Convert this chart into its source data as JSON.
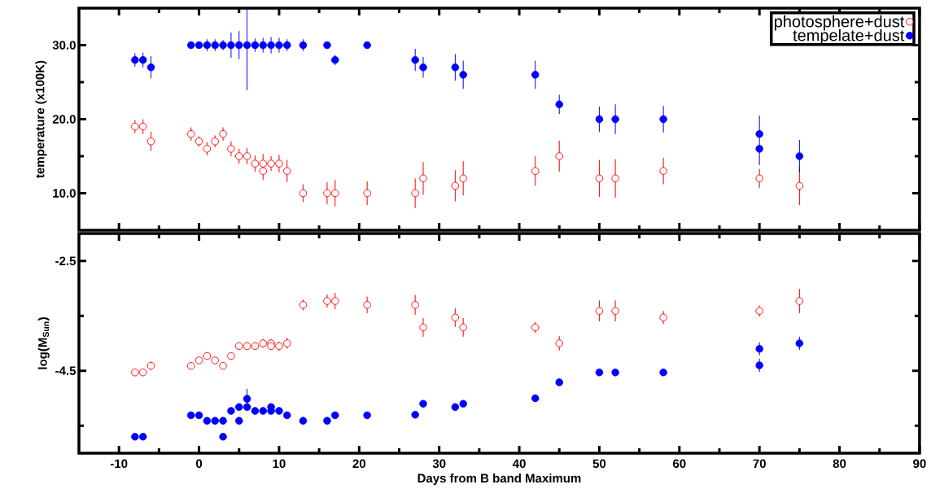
{
  "chart_data": [
    {
      "type": "scatter",
      "ylabel": "temperature (x100K)",
      "xlim": [
        -15,
        90
      ],
      "ylim": [
        5,
        35
      ],
      "xticks": [
        -10,
        {
          "value": -5,
          "label": null
        },
        0,
        {
          "value": 5,
          "label": null
        },
        10,
        {
          "value": 15,
          "label": null
        },
        20,
        {
          "value": 25,
          "label": null
        },
        30,
        {
          "value": 35,
          "label": null
        },
        40,
        {
          "value": 45,
          "label": null
        },
        50,
        {
          "value": 55,
          "label": null
        },
        60,
        {
          "value": 65,
          "label": null
        },
        70,
        {
          "value": 75,
          "label": null
        },
        80,
        {
          "value": 85,
          "label": null
        },
        90
      ],
      "yticks": [
        {
          "value": 10,
          "label": "10.0"
        },
        {
          "value": 15,
          "label": null
        },
        {
          "value": 20,
          "label": "20.0"
        },
        {
          "value": 25,
          "label": null
        },
        {
          "value": 30,
          "label": "30.0"
        }
      ],
      "tick_labels": "y",
      "legend": "top right",
      "marker": "circle",
      "grid": false,
      "series": [
        {
          "name": "photosphere+dust",
          "color": "#ff0000",
          "x": [
            -8,
            -7,
            -6,
            -1,
            0,
            1,
            2,
            3,
            4,
            5,
            6,
            7,
            8,
            8,
            9,
            10,
            11,
            13,
            16,
            17,
            21,
            27,
            28,
            32,
            33,
            42,
            45,
            50,
            52,
            58,
            70,
            75
          ],
          "values": [
            19,
            19,
            17,
            18,
            17,
            16,
            17,
            18,
            16,
            15,
            15,
            14,
            14,
            13,
            14,
            14,
            13,
            10,
            10,
            10,
            10,
            10,
            12,
            11,
            12,
            13,
            15,
            12,
            12,
            13,
            12,
            11
          ],
          "errors": [
            0.9,
            1.0,
            1.3,
            0.9,
            0.7,
            0.9,
            0.8,
            0.9,
            1.0,
            1.0,
            1.1,
            1.1,
            null,
            [
              11.8,
              15.3
            ],
            1.0,
            1.2,
            1.5,
            1.2,
            1.5,
            1.8,
            1.6,
            2.0,
            2.2,
            2.1,
            2.3,
            2.0,
            2.1,
            2.5,
            2.6,
            1.8,
            1.3,
            2.6
          ]
        },
        {
          "name": "tempelate+dust",
          "color": "#0000ff",
          "x": [
            -8,
            -7,
            -6,
            -1,
            0,
            1,
            2,
            3,
            4,
            5,
            6,
            7,
            8,
            9,
            10,
            11,
            13,
            16,
            17,
            21,
            27,
            28,
            32,
            33,
            42,
            45,
            50,
            52,
            58,
            70,
            70,
            75
          ],
          "values": [
            28,
            28,
            27,
            30,
            30,
            30,
            30,
            30,
            30,
            30,
            30,
            30,
            30,
            30,
            30,
            30,
            30,
            30,
            28,
            30,
            28,
            27,
            27,
            26,
            26,
            22,
            20,
            20,
            20,
            18,
            16,
            15
          ],
          "errors": [
            0.9,
            1.0,
            1.5,
            null,
            null,
            0.8,
            0.8,
            0.7,
            1.7,
            1.9,
            [
              23.9,
              35
            ],
            0.9,
            1.0,
            1.1,
            1.0,
            0.8,
            0.8,
            null,
            0.7,
            null,
            1.5,
            1.4,
            1.8,
            1.9,
            1.9,
            1.3,
            1.7,
            2.0,
            1.8,
            null,
            [
              13.8,
              20.5
            ],
            2.2
          ]
        }
      ]
    },
    {
      "type": "scatter",
      "ylabel": "log(M$_{Sun}$)",
      "xlabel": "Days from B band Maximum",
      "xlim": [
        -15,
        90
      ],
      "ylim": [
        -6,
        -2
      ],
      "xticks": [
        -10,
        {
          "value": -5,
          "label": null
        },
        0,
        {
          "value": 5,
          "label": null
        },
        10,
        {
          "value": 15,
          "label": null
        },
        20,
        {
          "value": 25,
          "label": null
        },
        30,
        {
          "value": 35,
          "label": null
        },
        40,
        {
          "value": 45,
          "label": null
        },
        50,
        {
          "value": 55,
          "label": null
        },
        60,
        {
          "value": 65,
          "label": null
        },
        70,
        {
          "value": 75,
          "label": null
        },
        80,
        {
          "value": 85,
          "label": null
        },
        90
      ],
      "yticks": [
        -2.5,
        {
          "value": -3.5,
          "label": null
        },
        -4.5,
        {
          "value": -5.5,
          "label": null
        }
      ],
      "marker": "circle",
      "grid": false,
      "series": [
        {
          "color": "#ff0000",
          "x": [
            -8,
            -7,
            -6,
            -1,
            0,
            1,
            2,
            3,
            4,
            5,
            6,
            7,
            8,
            9,
            9,
            10,
            11,
            13,
            16,
            17,
            21,
            27,
            28,
            32,
            33,
            42,
            45,
            50,
            52,
            58,
            70,
            75
          ],
          "values": [
            -4.53,
            -4.53,
            -4.41,
            -4.41,
            -4.31,
            -4.23,
            -4.31,
            -4.41,
            -4.23,
            -4.05,
            -4.05,
            -4.05,
            -4.0,
            -4.0,
            -4.05,
            -4.05,
            -4.0,
            -3.3,
            -3.23,
            -3.23,
            -3.3,
            -3.3,
            -3.71,
            -3.53,
            -3.71,
            -3.71,
            -4.0,
            -3.41,
            -3.41,
            -3.53,
            -3.41,
            -3.23
          ],
          "errors": [
            0.06,
            0.06,
            0.08,
            0.06,
            0.06,
            0.06,
            0.06,
            0.06,
            0.06,
            0.06,
            0.06,
            0.06,
            0.08,
            [
              -4.11,
              -3.92
            ],
            null,
            0.08,
            0.1,
            0.1,
            0.12,
            0.15,
            0.15,
            0.18,
            0.17,
            0.17,
            0.17,
            0.1,
            0.13,
            0.19,
            0.19,
            0.12,
            0.1,
            0.22
          ]
        },
        {
          "color": "#0000ff",
          "x": [
            -8,
            -7,
            -1,
            0,
            1,
            2,
            3,
            3,
            4,
            5,
            5,
            6,
            6,
            7,
            8,
            9,
            9,
            10,
            11,
            13,
            16,
            17,
            21,
            27,
            28,
            32,
            33,
            42,
            45,
            50,
            52,
            58,
            70,
            70,
            75
          ],
          "values": [
            -5.7,
            -5.7,
            -5.31,
            -5.31,
            -5.41,
            -5.41,
            -5.41,
            -5.7,
            -5.23,
            -5.16,
            -5.41,
            -5.16,
            -5.01,
            -5.23,
            -5.23,
            -5.16,
            -5.23,
            -5.23,
            -5.31,
            -5.41,
            -5.41,
            -5.31,
            -5.31,
            -5.3,
            -5.1,
            -5.16,
            -5.1,
            -5.0,
            -4.71,
            -4.53,
            -4.53,
            -4.53,
            -4.1,
            -4.4,
            -4.0
          ],
          "errors": [
            null,
            null,
            null,
            null,
            null,
            null,
            null,
            null,
            null,
            null,
            null,
            null,
            0.18,
            null,
            null,
            null,
            null,
            null,
            null,
            null,
            null,
            null,
            null,
            null,
            null,
            null,
            null,
            null,
            0.05,
            0.05,
            0.07,
            0.06,
            0.12,
            0.12,
            0.12
          ]
        }
      ]
    }
  ]
}
